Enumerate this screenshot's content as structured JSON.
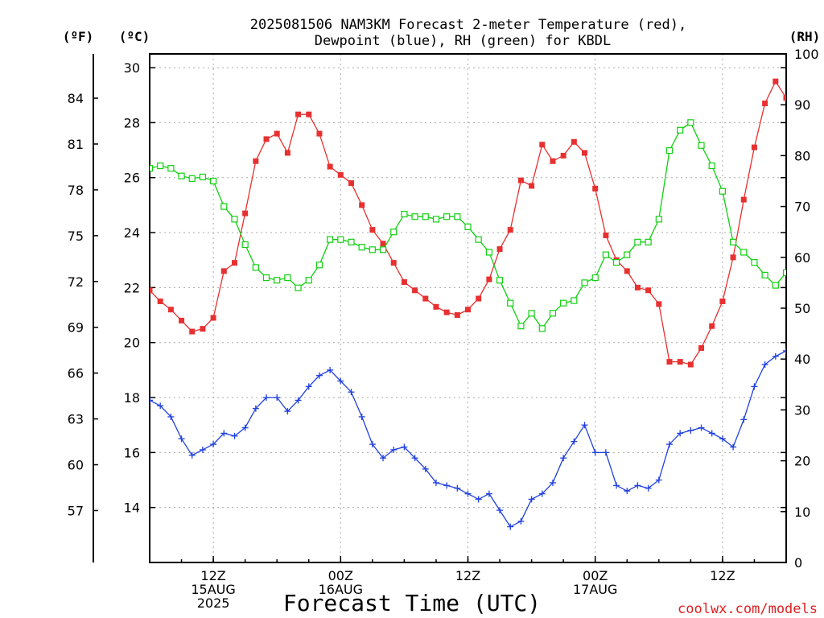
{
  "chart_data": {
    "type": "line",
    "title_line1": "2025081506 NAM3KM Forecast 2-meter Temperature (red),",
    "title_line2": "Dewpoint (blue), RH (green) for KBDL",
    "xlabel": "Forecast Time (UTC)",
    "credit": "coolwx.com/models",
    "unit_f": "(ºF)",
    "unit_c": "(ºC)",
    "unit_rh": "(RH)",
    "left_c_ylim": [
      12,
      30.5
    ],
    "right_rh_ylim": [
      0,
      100
    ],
    "fahrenheit_ticks": [
      "84",
      "81",
      "78",
      "75",
      "72",
      "69",
      "66",
      "63",
      "60",
      "57"
    ],
    "celsius_ticks": [
      "30",
      "28",
      "26",
      "24",
      "22",
      "20",
      "18",
      "16",
      "14"
    ],
    "rh_ticks": [
      "100",
      "90",
      "80",
      "70",
      "60",
      "50",
      "40",
      "30",
      "20",
      "10",
      "0"
    ],
    "x_ticks": [
      {
        "hour": 6,
        "lines": [
          "12Z",
          "15AUG",
          "2025"
        ]
      },
      {
        "hour": 18,
        "lines": [
          "00Z",
          "16AUG"
        ]
      },
      {
        "hour": 30,
        "lines": [
          "12Z"
        ]
      },
      {
        "hour": 42,
        "lines": [
          "00Z",
          "17AUG"
        ]
      },
      {
        "hour": 54,
        "lines": [
          "12Z"
        ]
      }
    ],
    "x_hours_range": [
      0,
      60
    ],
    "grid": true,
    "colors": {
      "temperature": "#e83030",
      "dewpoint": "#2040e0",
      "rh": "#10d010"
    },
    "series": [
      {
        "name": "2-meter Temperature (red)",
        "units": "°C",
        "x": [
          0,
          1,
          2,
          3,
          4,
          5,
          6,
          7,
          8,
          9,
          10,
          11,
          12,
          13,
          14,
          15,
          16,
          17,
          18,
          19,
          20,
          21,
          22,
          23,
          24,
          25,
          26,
          27,
          28,
          29,
          30,
          31,
          32,
          33,
          34,
          35,
          36,
          37,
          38,
          39,
          40,
          41,
          42,
          43,
          44,
          45,
          46,
          47,
          48,
          49,
          50,
          51,
          52,
          53,
          54,
          55,
          56,
          57,
          58,
          59,
          60
        ],
        "values": [
          21.9,
          21.5,
          21.2,
          20.8,
          20.4,
          20.5,
          20.9,
          22.6,
          22.9,
          24.7,
          26.6,
          27.4,
          27.6,
          26.9,
          28.3,
          28.3,
          27.6,
          26.4,
          26.1,
          25.8,
          25.0,
          24.1,
          23.6,
          22.9,
          22.2,
          21.9,
          21.6,
          21.3,
          21.1,
          21.0,
          21.2,
          21.6,
          22.3,
          23.4,
          24.1,
          25.9,
          25.7,
          27.2,
          26.6,
          26.8,
          27.3,
          26.9,
          25.6,
          23.9,
          23.0,
          22.6,
          22.0,
          21.9,
          21.4,
          19.3,
          19.3,
          19.2,
          19.8,
          20.6,
          21.5,
          23.1,
          25.2,
          27.1,
          28.7,
          29.5,
          28.9
        ]
      },
      {
        "name": "Dewpoint (blue)",
        "units": "°C",
        "x": [
          0,
          1,
          2,
          3,
          4,
          5,
          6,
          7,
          8,
          9,
          10,
          11,
          12,
          13,
          14,
          15,
          16,
          17,
          18,
          19,
          20,
          21,
          22,
          23,
          24,
          25,
          26,
          27,
          28,
          29,
          30,
          31,
          32,
          33,
          34,
          35,
          36,
          37,
          38,
          39,
          40,
          41,
          42,
          43,
          44,
          45,
          46,
          47,
          48,
          49,
          50,
          51,
          52,
          53,
          54,
          55,
          56,
          57,
          58,
          59,
          60
        ],
        "values": [
          17.9,
          17.7,
          17.3,
          16.5,
          15.9,
          16.1,
          16.3,
          16.7,
          16.6,
          16.9,
          17.6,
          18.0,
          18.0,
          17.5,
          17.9,
          18.4,
          18.8,
          19.0,
          18.6,
          18.2,
          17.3,
          16.3,
          15.8,
          16.1,
          16.2,
          15.8,
          15.4,
          14.9,
          14.8,
          14.7,
          14.5,
          14.3,
          14.5,
          13.9,
          13.3,
          13.5,
          14.3,
          14.5,
          14.9,
          15.8,
          16.4,
          17.0,
          16.0,
          16.0,
          14.8,
          14.6,
          14.8,
          14.7,
          15.0,
          16.3,
          16.7,
          16.8,
          16.9,
          16.7,
          16.5,
          16.2,
          17.2,
          18.4,
          19.2,
          19.5,
          19.7
        ]
      },
      {
        "name": "RH (green)",
        "units": "%",
        "x": [
          0,
          1,
          2,
          3,
          4,
          5,
          6,
          7,
          8,
          9,
          10,
          11,
          12,
          13,
          14,
          15,
          16,
          17,
          18,
          19,
          20,
          21,
          22,
          23,
          24,
          25,
          26,
          27,
          28,
          29,
          30,
          31,
          32,
          33,
          34,
          35,
          36,
          37,
          38,
          39,
          40,
          41,
          42,
          43,
          44,
          45,
          46,
          47,
          48,
          49,
          50,
          51,
          52,
          53,
          54,
          55,
          56,
          57,
          58,
          59,
          60
        ],
        "values": [
          77.5,
          78,
          77.5,
          76,
          75.5,
          75.8,
          75,
          70,
          67.5,
          62.5,
          58,
          56,
          55.5,
          56,
          54,
          55.5,
          58.5,
          63.5,
          63.5,
          63,
          62,
          61.5,
          61.5,
          65,
          68.5,
          68,
          68,
          67.5,
          68,
          68,
          66,
          63.5,
          61,
          55.5,
          51,
          46.5,
          49,
          46,
          49,
          51,
          51.5,
          55,
          56,
          60.5,
          59,
          60.5,
          63,
          63,
          67.5,
          81,
          85,
          86.5,
          82,
          78,
          73,
          63,
          61,
          59,
          56.5,
          54.5,
          57
        ]
      }
    ]
  }
}
